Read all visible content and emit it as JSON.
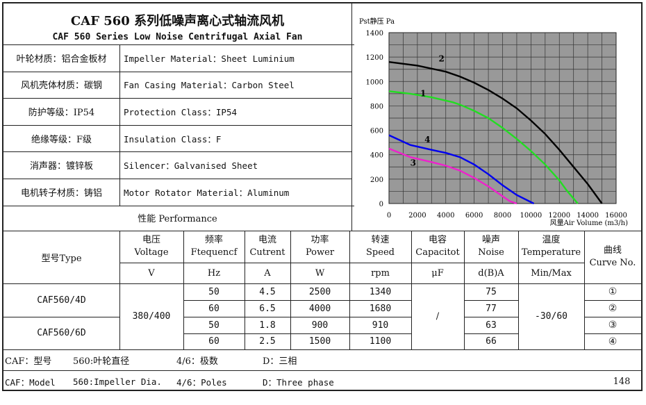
{
  "title": {
    "cn": "CAF 560 系列低噪声离心式轴流风机",
    "en": "CAF 560 Series Low Noise Centrifugal Axial Fan"
  },
  "specs": [
    {
      "cn": "叶轮材质：铝合金板材",
      "en": "Impeller Material：Sheet Luminium"
    },
    {
      "cn": "风机壳体材质：碳钢",
      "en": "Fan Casing Material：Carbon Steel"
    },
    {
      "cn": "防护等级：IP54",
      "en": "Protection Class：IP54"
    },
    {
      "cn": "绝缘等级：F级",
      "en": "Insulation Class：F"
    },
    {
      "cn": "消声器：镀锌板",
      "en": "Silencer：Galvanised Sheet"
    },
    {
      "cn": "电机转子材质：铸铝",
      "en": "Motor Rotator Material：Aluminum"
    }
  ],
  "performance_label": "性能  Performance",
  "table": {
    "type_header": "型号Type",
    "headers": [
      {
        "cn": "电压",
        "en": "Voltage",
        "unit": "V"
      },
      {
        "cn": "频率",
        "en": "Ftequencf",
        "unit": "Hz"
      },
      {
        "cn": "电流",
        "en": "Cutrent",
        "unit": "A"
      },
      {
        "cn": "功率",
        "en": "Power",
        "unit": "W"
      },
      {
        "cn": "转速",
        "en": "Speed",
        "unit": "rpm"
      },
      {
        "cn": "电容",
        "en": "Capacitot",
        "unit": "μF"
      },
      {
        "cn": "噪声",
        "en": "Noise",
        "unit": "d(B)A"
      },
      {
        "cn": "温度",
        "en": "Temperature",
        "unit": "Min/Max"
      },
      {
        "cn": "曲线",
        "en": "Curve No.",
        "unit": ""
      }
    ],
    "models": [
      "CAF560/4D",
      "CAF560/6D"
    ],
    "voltage": "380/400",
    "capacitor": "/",
    "temperature": "-30/60",
    "rows": [
      {
        "hz": "50",
        "a": "4.5",
        "w": "2500",
        "rpm": "1340",
        "noise": "75",
        "curve": "①"
      },
      {
        "hz": "60",
        "a": "6.5",
        "w": "4000",
        "rpm": "1680",
        "noise": "77",
        "curve": "②"
      },
      {
        "hz": "50",
        "a": "1.8",
        "w": "900",
        "rpm": "910",
        "noise": "63",
        "curve": "③"
      },
      {
        "hz": "60",
        "a": "2.5",
        "w": "1500",
        "rpm": "1100",
        "noise": "66",
        "curve": "④"
      }
    ]
  },
  "footer": {
    "cn": [
      "CAF：型号",
      "560:叶轮直径",
      "4/6：极数",
      "D：三相"
    ],
    "en": [
      "CAF：Model",
      "560:Impeller Dia.",
      "4/6：Poles",
      "D：Three phase"
    ],
    "page": "148"
  },
  "chart_data": {
    "type": "line",
    "ylabel": "Pst静压 Pa",
    "xlabel": "风量Air Volume  (m3/h)",
    "xlim": [
      0,
      16000
    ],
    "ylim": [
      0,
      1400
    ],
    "x_ticks": [
      "0",
      "2000",
      "4000",
      "6000",
      "8000",
      "10000",
      "12000",
      "14000",
      "16000"
    ],
    "y_ticks": [
      "0",
      "200",
      "400",
      "600",
      "800",
      "1000",
      "1200",
      "1400"
    ],
    "grid": true,
    "background": "#999999",
    "series": [
      {
        "name": "1",
        "color": "#22dd22",
        "x": [
          0,
          1500,
          3000,
          4500,
          5000,
          6000,
          7000,
          8000,
          9000,
          10000,
          11000,
          12000,
          12500,
          13300
        ],
        "y": [
          920,
          900,
          870,
          830,
          810,
          760,
          700,
          620,
          530,
          430,
          320,
          190,
          110,
          0
        ]
      },
      {
        "name": "2",
        "color": "#000000",
        "x": [
          0,
          2000,
          4000,
          5000,
          6000,
          7000,
          8000,
          9000,
          10000,
          11000,
          12000,
          13000,
          14000,
          15000
        ],
        "y": [
          1160,
          1130,
          1080,
          1040,
          990,
          930,
          860,
          780,
          680,
          570,
          440,
          300,
          160,
          0
        ]
      },
      {
        "name": "3",
        "color": "#ee22cc",
        "x": [
          0,
          1500,
          3000,
          4000,
          5000,
          6000,
          7000,
          8000,
          8500,
          9000
        ],
        "y": [
          450,
          380,
          340,
          310,
          270,
          210,
          140,
          60,
          20,
          0
        ]
      },
      {
        "name": "4",
        "color": "#0000ee",
        "x": [
          0,
          1500,
          3000,
          4000,
          5000,
          6000,
          7000,
          8000,
          9000,
          10200
        ],
        "y": [
          560,
          480,
          440,
          415,
          380,
          320,
          240,
          150,
          70,
          0
        ]
      }
    ],
    "annotations": [
      "1",
      "2",
      "3",
      "4"
    ]
  }
}
